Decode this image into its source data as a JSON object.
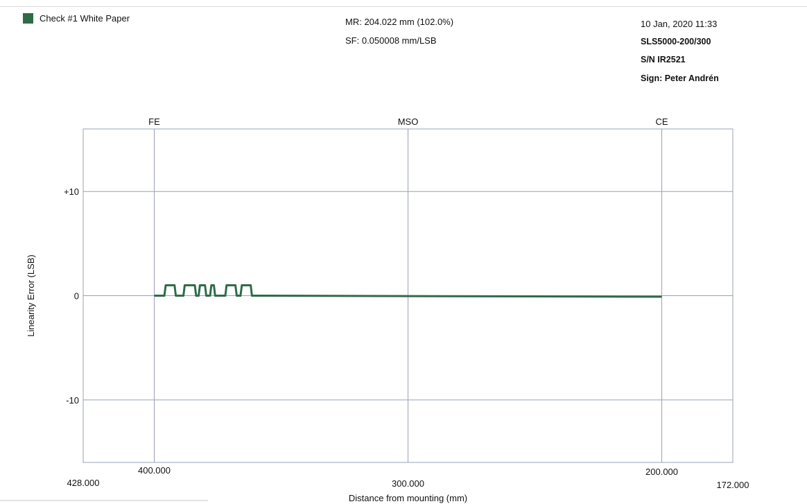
{
  "header": {
    "legend_label": "Check #1 White Paper",
    "mr": "MR: 204.022 mm (102.0%)",
    "sf": "SF: 0.050008 mm/LSB",
    "datetime": "10 Jan, 2020   11:33",
    "model": "SLS5000-200/300",
    "serial": "S/N IR2521",
    "sign": "Sign: Peter Andrén"
  },
  "colors": {
    "series": "#2f6b49",
    "grid": "#9aa0b4",
    "frame": "#9aa0b4"
  },
  "chart_data": {
    "type": "line",
    "title": "",
    "xlabel": "Distance from mounting (mm)",
    "ylabel": "Linearity Error (LSB)",
    "xlim": [
      428,
      172
    ],
    "ylim": [
      -16,
      16
    ],
    "x_ticks": [
      {
        "value": 428,
        "label": "428.000"
      },
      {
        "value": 400,
        "label": "400.000"
      },
      {
        "value": 300,
        "label": "300.000"
      },
      {
        "value": 200,
        "label": "200.000"
      },
      {
        "value": 172,
        "label": "172.000"
      }
    ],
    "y_ticks": [
      {
        "value": 10,
        "label": "+10"
      },
      {
        "value": 0,
        "label": "0"
      },
      {
        "value": -10,
        "label": "-10"
      }
    ],
    "markers": [
      {
        "value": 400,
        "label": "FE"
      },
      {
        "value": 300,
        "label": "MSO"
      },
      {
        "value": 200,
        "label": "CE"
      }
    ],
    "grid": true,
    "series": [
      {
        "name": "Check #1 White Paper",
        "x": [
          400,
          396,
          395.5,
          392,
          391.5,
          388.5,
          388,
          384,
          383.5,
          382.5,
          382,
          380,
          379.5,
          378,
          377.5,
          376.5,
          376,
          372,
          371.5,
          368,
          367.5,
          366,
          365.5,
          362,
          361.5,
          200
        ],
        "y": [
          0,
          0,
          1,
          1,
          0,
          0,
          1,
          1,
          0,
          0,
          1,
          1,
          0,
          0,
          1,
          1,
          0,
          0,
          1,
          1,
          0,
          0,
          1,
          1,
          0,
          -0.1
        ]
      }
    ]
  }
}
